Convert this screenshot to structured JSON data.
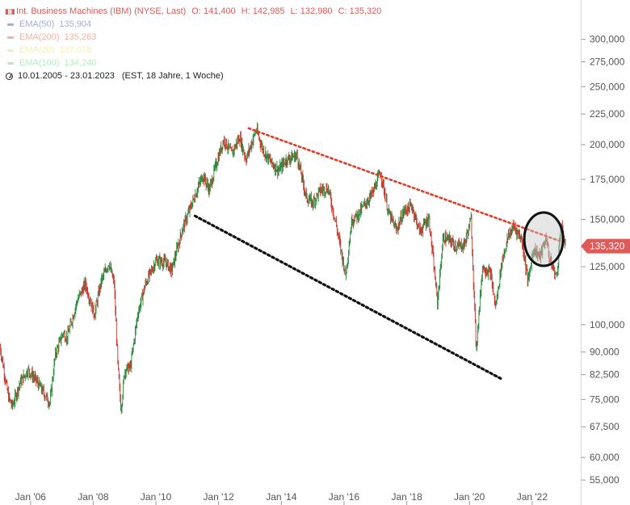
{
  "header": {
    "instrument": "Int. Business Machines (IBM) (NYSE, Last)",
    "open": "O: 141,400",
    "high": "H: 142,985",
    "low": "L: 132,980",
    "close": "C: 135,320",
    "color": "#e05a5a",
    "chart_icon": "candlestick-icon"
  },
  "legend": [
    {
      "name": "EMA(50)",
      "value": "135,904",
      "color": "#a9a9e8"
    },
    {
      "name": "EMA(200)",
      "value": "135,263",
      "color": "#f0b3a8"
    },
    {
      "name": "EMA(20)",
      "value": "137,078",
      "color": "#f3efb8"
    },
    {
      "name": "EMA(100)",
      "value": "134,240",
      "color": "#b3edc6"
    }
  ],
  "period": {
    "range": "10.01.2005 - 23.01.2023",
    "info": "(EST, 18 Jahre, 1 Woche)",
    "icon": "clock-icon"
  },
  "price_tag": {
    "label": "135,320",
    "value": 135.32,
    "color": "#e05a5a"
  },
  "chart_data": {
    "type": "line",
    "subtype": "candlestick",
    "title": "Int. Business Machines (IBM) (NYSE, Last)",
    "y_scale": "log",
    "ylim": [
      53,
      330
    ],
    "xlim": [
      "2005-01-10",
      "2023-01-23"
    ],
    "y_ticks": [
      {
        "value": 300,
        "label": "300,000"
      },
      {
        "value": 275,
        "label": "275,000"
      },
      {
        "value": 250,
        "label": "250,000"
      },
      {
        "value": 225,
        "label": "225,000"
      },
      {
        "value": 200,
        "label": "200,000"
      },
      {
        "value": 175,
        "label": "175,000"
      },
      {
        "value": 150,
        "label": "150,000"
      },
      {
        "value": 125,
        "label": "125,000"
      },
      {
        "value": 100,
        "label": "100,000"
      },
      {
        "value": 90,
        "label": "90,000"
      },
      {
        "value": 82.5,
        "label": "82,500"
      },
      {
        "value": 75,
        "label": "75,000"
      },
      {
        "value": 67.5,
        "label": "67,500"
      },
      {
        "value": 60,
        "label": "60,000"
      },
      {
        "value": 55,
        "label": "55,000"
      }
    ],
    "x_ticks": [
      {
        "value": "2006-01-01",
        "label": "Jan '06"
      },
      {
        "value": "2008-01-01",
        "label": "Jan '08"
      },
      {
        "value": "2010-01-01",
        "label": "Jan '10"
      },
      {
        "value": "2012-01-01",
        "label": "Jan '12"
      },
      {
        "value": "2014-01-01",
        "label": "Jan '14"
      },
      {
        "value": "2016-01-01",
        "label": "Jan '16"
      },
      {
        "value": "2018-01-01",
        "label": "Jan '18"
      },
      {
        "value": "2020-01-01",
        "label": "Jan '20"
      },
      {
        "value": "2022-01-01",
        "label": "Jan '22"
      }
    ],
    "series": [
      {
        "points": [
          [
            "2005-01-10",
            92
          ],
          [
            "2005-04-15",
            76
          ],
          [
            "2005-06-01",
            73
          ],
          [
            "2005-09-01",
            80
          ],
          [
            "2005-12-01",
            84
          ],
          [
            "2006-03-01",
            81
          ],
          [
            "2006-06-01",
            77
          ],
          [
            "2006-08-15",
            74
          ],
          [
            "2006-10-15",
            89
          ],
          [
            "2007-01-15",
            97
          ],
          [
            "2007-03-01",
            95
          ],
          [
            "2007-07-01",
            110
          ],
          [
            "2007-10-01",
            117
          ],
          [
            "2008-01-15",
            104
          ],
          [
            "2008-04-01",
            118
          ],
          [
            "2008-07-01",
            127
          ],
          [
            "2008-09-01",
            117
          ],
          [
            "2008-10-15",
            85
          ],
          [
            "2008-11-20",
            72
          ],
          [
            "2009-01-01",
            84
          ],
          [
            "2009-03-10",
            85
          ],
          [
            "2009-06-01",
            104
          ],
          [
            "2009-09-01",
            117
          ],
          [
            "2010-01-01",
            128
          ],
          [
            "2010-05-01",
            127
          ],
          [
            "2010-07-01",
            123
          ],
          [
            "2010-11-01",
            144
          ],
          [
            "2011-03-01",
            160
          ],
          [
            "2011-07-01",
            178
          ],
          [
            "2011-09-15",
            168
          ],
          [
            "2011-12-01",
            185
          ],
          [
            "2012-03-01",
            204
          ],
          [
            "2012-06-01",
            193
          ],
          [
            "2012-09-01",
            206
          ],
          [
            "2012-11-15",
            189
          ],
          [
            "2013-03-15",
            212
          ],
          [
            "2013-06-01",
            196
          ],
          [
            "2013-09-01",
            187
          ],
          [
            "2013-12-01",
            181
          ],
          [
            "2014-03-01",
            189
          ],
          [
            "2014-07-01",
            192
          ],
          [
            "2014-10-20",
            163
          ],
          [
            "2015-01-01",
            160
          ],
          [
            "2015-04-01",
            168
          ],
          [
            "2015-07-01",
            169
          ],
          [
            "2015-10-01",
            147
          ],
          [
            "2016-01-20",
            121
          ],
          [
            "2016-04-01",
            150
          ],
          [
            "2016-06-01",
            152
          ],
          [
            "2016-09-01",
            159
          ],
          [
            "2016-12-01",
            166
          ],
          [
            "2017-03-01",
            180
          ],
          [
            "2017-06-01",
            154
          ],
          [
            "2017-09-01",
            144
          ],
          [
            "2017-12-01",
            155
          ],
          [
            "2018-03-01",
            158
          ],
          [
            "2018-06-01",
            143
          ],
          [
            "2018-09-15",
            151
          ],
          [
            "2018-12-25",
            109
          ],
          [
            "2019-03-01",
            140
          ],
          [
            "2019-06-01",
            138
          ],
          [
            "2019-08-01",
            135
          ],
          [
            "2019-11-01",
            136
          ],
          [
            "2020-01-20",
            150
          ],
          [
            "2020-03-20",
            91
          ],
          [
            "2020-06-01",
            125
          ],
          [
            "2020-09-01",
            122
          ],
          [
            "2020-11-01",
            107
          ],
          [
            "2021-01-15",
            128
          ],
          [
            "2021-04-01",
            141
          ],
          [
            "2021-06-01",
            146
          ],
          [
            "2021-09-01",
            139
          ],
          [
            "2021-11-15",
            118
          ],
          [
            "2022-01-15",
            134
          ],
          [
            "2022-04-01",
            130
          ],
          [
            "2022-06-15",
            140
          ],
          [
            "2022-07-20",
            129
          ],
          [
            "2022-10-15",
            120
          ],
          [
            "2022-12-01",
            148
          ],
          [
            "2023-01-23",
            135.32
          ]
        ]
      }
    ],
    "annotations": [
      {
        "type": "trendline",
        "style": "dotted",
        "color": "#e03c28",
        "from": [
          "2012-12-15",
          213
        ],
        "to": [
          "2022-11-20",
          138
        ]
      },
      {
        "type": "trendline",
        "style": "dotted",
        "color": "#111111",
        "from": [
          "2011-04-01",
          152
        ],
        "to": [
          "2021-01-20",
          81
        ]
      },
      {
        "type": "circle",
        "color": "#111111",
        "center": [
          "2022-05-15",
          139
        ]
      }
    ],
    "grid": false,
    "legend_position": "top-left"
  }
}
